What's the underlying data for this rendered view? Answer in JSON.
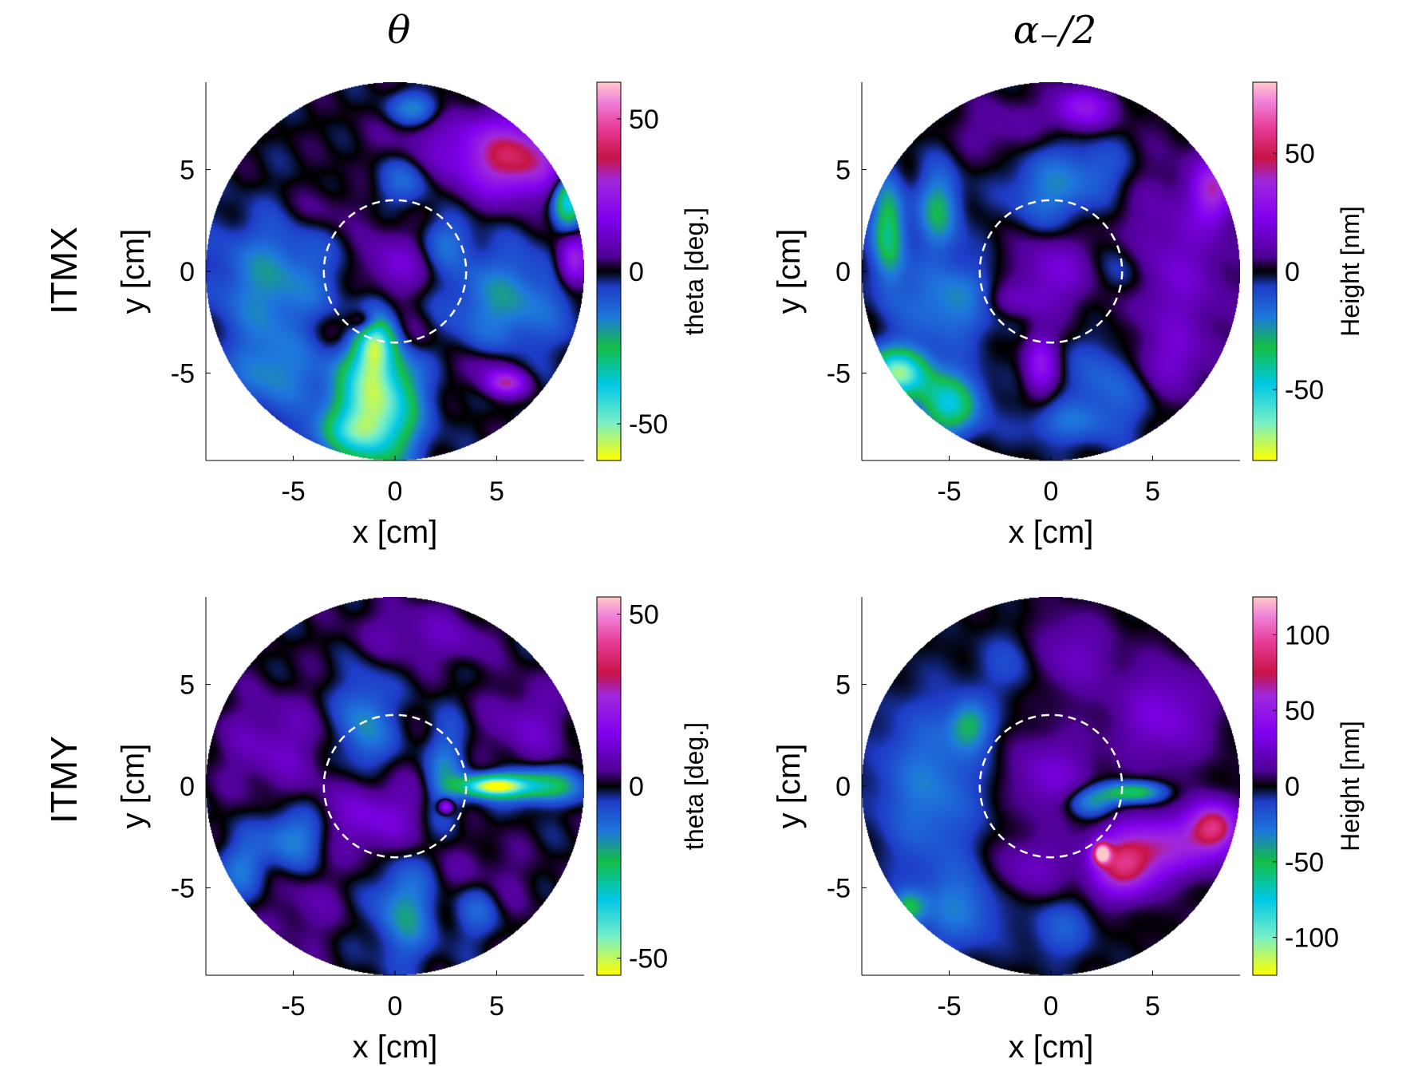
{
  "column_titles": [
    "θ",
    "α₋/2"
  ],
  "row_titles": [
    "ITMX",
    "ITMY"
  ],
  "chart_data": [
    {
      "type": "heatmap",
      "panel": "ITMX theta",
      "xlabel": "x [cm]",
      "ylabel": "y [cm]",
      "xlim": [
        -9.3,
        9.3
      ],
      "ylim": [
        -9.3,
        9.3
      ],
      "xticks": [
        -5,
        0,
        5
      ],
      "yticks": [
        -5,
        0,
        5
      ],
      "colorbar": {
        "label": "theta [deg.]",
        "range": [
          -62,
          62
        ],
        "ticks": [
          50,
          0,
          -50
        ]
      },
      "aperture_radius_cm": 9.3,
      "dashed_circle_radius_cm": 3.5,
      "blobs": [
        {
          "x": -1.0,
          "y": -6.5,
          "v": -55,
          "rx": 2.0,
          "ry": 3.0
        },
        {
          "x": -1.0,
          "y": -3.5,
          "v": -35,
          "rx": 0.9,
          "ry": 1.5
        },
        {
          "x": 6.0,
          "y": 5.5,
          "v": 35,
          "rx": 2.3,
          "ry": 1.8
        },
        {
          "x": 8.8,
          "y": 0.5,
          "v": 30,
          "rx": 0.8,
          "ry": 1.2
        },
        {
          "x": 8.5,
          "y": 3.5,
          "v": -40,
          "rx": 0.7,
          "ry": 1.2
        },
        {
          "x": 5.5,
          "y": -5.5,
          "v": 28,
          "rx": 1.0,
          "ry": 0.6
        },
        {
          "x": 0.0,
          "y": 0.3,
          "v": 14,
          "rx": 1.8,
          "ry": 1.8
        },
        {
          "x": -1.5,
          "y": -2.5,
          "v": 22,
          "rx": 0.7,
          "ry": 0.6
        },
        {
          "x": 3.0,
          "y": 6.0,
          "v": 12,
          "rx": 3.5,
          "ry": 2.0
        },
        {
          "x": -3.0,
          "y": -3.0,
          "v": 8,
          "rx": 1.5,
          "ry": 1.2
        },
        {
          "x": -3.5,
          "y": 3.0,
          "v": 6,
          "rx": 2.0,
          "ry": 1.2
        },
        {
          "x": 4.5,
          "y": -4.8,
          "v": 10,
          "rx": 1.5,
          "ry": 1.0
        },
        {
          "x": 1.0,
          "y": -3.2,
          "v": 10,
          "rx": 1.0,
          "ry": 1.2
        },
        {
          "x": -6.0,
          "y": -0.5,
          "v": -18,
          "rx": 3.0,
          "ry": 3.0
        },
        {
          "x": 5.5,
          "y": -1.5,
          "v": -18,
          "rx": 3.0,
          "ry": 2.5
        },
        {
          "x": 0.5,
          "y": 4.5,
          "v": -14,
          "rx": 1.5,
          "ry": 1.3
        },
        {
          "x": -6.0,
          "y": -5.0,
          "v": -16,
          "rx": 2.0,
          "ry": 2.0
        },
        {
          "x": 2.5,
          "y": 1.5,
          "v": -12,
          "rx": 1.3,
          "ry": 1.3
        },
        {
          "x": 1.0,
          "y": 8.0,
          "v": -18,
          "rx": 1.3,
          "ry": 0.8
        },
        {
          "x": -2.5,
          "y": -8.0,
          "v": -15,
          "rx": 2.0,
          "ry": 1.0
        }
      ]
    },
    {
      "type": "heatmap",
      "panel": "ITMX alpha/2",
      "xlabel": "x [cm]",
      "ylabel": "y [cm]",
      "xlim": [
        -9.3,
        9.3
      ],
      "ylim": [
        -9.3,
        9.3
      ],
      "xticks": [
        -5,
        0,
        5
      ],
      "yticks": [
        -5,
        0,
        5
      ],
      "colorbar": {
        "label": "Height [nm]",
        "range": [
          -80,
          80
        ],
        "ticks": [
          50,
          0,
          -50
        ]
      },
      "aperture_radius_cm": 9.3,
      "dashed_circle_radius_cm": 3.5,
      "blobs": [
        {
          "x": -7.5,
          "y": -5.0,
          "v": -65,
          "rx": 1.5,
          "ry": 1.2
        },
        {
          "x": -5.0,
          "y": -6.5,
          "v": -45,
          "rx": 1.5,
          "ry": 1.5
        },
        {
          "x": -8.0,
          "y": 2.0,
          "v": -40,
          "rx": 0.8,
          "ry": 2.5
        },
        {
          "x": -5.5,
          "y": 3.0,
          "v": -30,
          "rx": 1.0,
          "ry": 2.0
        },
        {
          "x": 8.0,
          "y": 4.0,
          "v": 35,
          "rx": 1.0,
          "ry": 1.5
        },
        {
          "x": 1.5,
          "y": 8.0,
          "v": 30,
          "rx": 1.5,
          "ry": 1.0
        },
        {
          "x": -0.5,
          "y": -4.5,
          "v": 28,
          "rx": 0.8,
          "ry": 1.5
        },
        {
          "x": 0.0,
          "y": 0.0,
          "v": 18,
          "rx": 2.0,
          "ry": 2.0
        },
        {
          "x": 6.0,
          "y": 0.0,
          "v": 16,
          "rx": 3.0,
          "ry": 5.0
        },
        {
          "x": 5.5,
          "y": -4.5,
          "v": 12,
          "rx": 2.0,
          "ry": 1.5
        },
        {
          "x": -2.5,
          "y": 7.0,
          "v": 10,
          "rx": 2.0,
          "ry": 1.5
        },
        {
          "x": -2.0,
          "y": -1.5,
          "v": 12,
          "rx": 1.5,
          "ry": 0.8
        },
        {
          "x": 0.0,
          "y": 4.0,
          "v": -20,
          "rx": 2.0,
          "ry": 2.0
        },
        {
          "x": -5.0,
          "y": -1.5,
          "v": -22,
          "rx": 2.5,
          "ry": 2.0
        },
        {
          "x": 3.0,
          "y": -5.5,
          "v": -18,
          "rx": 2.0,
          "ry": 2.5
        },
        {
          "x": 3.5,
          "y": 0.0,
          "v": -14,
          "rx": 1.2,
          "ry": 1.5
        },
        {
          "x": 2.5,
          "y": 5.0,
          "v": -12,
          "rx": 1.5,
          "ry": 1.5
        },
        {
          "x": 0.5,
          "y": -7.5,
          "v": -14,
          "rx": 2.0,
          "ry": 1.0
        }
      ]
    },
    {
      "type": "heatmap",
      "panel": "ITMY theta",
      "xlabel": "x [cm]",
      "ylabel": "y [cm]",
      "xlim": [
        -9.3,
        9.3
      ],
      "ylim": [
        -9.3,
        9.3
      ],
      "xticks": [
        -5,
        0,
        5
      ],
      "yticks": [
        -5,
        0,
        5
      ],
      "colorbar": {
        "label": "theta [deg.]",
        "range": [
          -55,
          55
        ],
        "ticks": [
          50,
          0,
          -50
        ]
      },
      "aperture_radius_cm": 9.3,
      "dashed_circle_radius_cm": 3.5,
      "blobs": [
        {
          "x": 4.8,
          "y": 0.0,
          "v": -50,
          "rx": 1.5,
          "ry": 0.5
        },
        {
          "x": 7.0,
          "y": 0.0,
          "v": -28,
          "rx": 2.0,
          "ry": 0.8
        },
        {
          "x": 2.5,
          "y": -1.0,
          "v": 28,
          "rx": 0.35,
          "ry": 0.35
        },
        {
          "x": -1.0,
          "y": -1.5,
          "v": 14,
          "rx": 2.5,
          "ry": 2.0
        },
        {
          "x": -6.0,
          "y": 2.0,
          "v": 10,
          "rx": 2.5,
          "ry": 2.5
        },
        {
          "x": 6.5,
          "y": 3.0,
          "v": 10,
          "rx": 2.0,
          "ry": 2.0
        },
        {
          "x": 1.0,
          "y": 7.5,
          "v": 8,
          "rx": 3.0,
          "ry": 1.5
        },
        {
          "x": 4.0,
          "y": -5.0,
          "v": 8,
          "rx": 2.5,
          "ry": 2.0
        },
        {
          "x": -4.5,
          "y": -6.0,
          "v": 6,
          "rx": 2.0,
          "ry": 2.0
        },
        {
          "x": -1.5,
          "y": 3.0,
          "v": -16,
          "rx": 1.3,
          "ry": 2.5
        },
        {
          "x": 2.5,
          "y": 0.5,
          "v": -14,
          "rx": 1.0,
          "ry": 2.5
        },
        {
          "x": -5.0,
          "y": -2.5,
          "v": -16,
          "rx": 1.5,
          "ry": 1.5
        },
        {
          "x": 0.5,
          "y": -6.0,
          "v": -18,
          "rx": 1.5,
          "ry": 2.5
        },
        {
          "x": 4.0,
          "y": -6.0,
          "v": -14,
          "rx": 1.3,
          "ry": 1.5
        },
        {
          "x": -7.5,
          "y": -4.0,
          "v": -12,
          "rx": 1.2,
          "ry": 1.5
        },
        {
          "x": 3.5,
          "y": 7.0,
          "v": 4,
          "rx": 1.3,
          "ry": 1.0
        }
      ]
    },
    {
      "type": "heatmap",
      "panel": "ITMY alpha/2",
      "xlabel": "x [cm]",
      "ylabel": "y [cm]",
      "xlim": [
        -9.3,
        9.3
      ],
      "ylim": [
        -9.3,
        9.3
      ],
      "xticks": [
        -5,
        0,
        5
      ],
      "yticks": [
        -5,
        0,
        5
      ],
      "colorbar": {
        "label": "Height [nm]",
        "range": [
          -125,
          125
        ],
        "ticks": [
          100,
          50,
          0,
          -50,
          -100
        ]
      },
      "aperture_radius_cm": 9.3,
      "dashed_circle_radius_cm": 3.5,
      "blobs": [
        {
          "x": 2.5,
          "y": -3.3,
          "v": 110,
          "rx": 0.4,
          "ry": 0.5
        },
        {
          "x": 3.5,
          "y": -4.0,
          "v": 70,
          "rx": 1.5,
          "ry": 1.5
        },
        {
          "x": 8.0,
          "y": -2.0,
          "v": 80,
          "rx": 1.2,
          "ry": 1.2
        },
        {
          "x": 5.5,
          "y": -3.0,
          "v": 55,
          "rx": 2.5,
          "ry": 1.5
        },
        {
          "x": 4.0,
          "y": -0.3,
          "v": -60,
          "rx": 1.5,
          "ry": 0.5
        },
        {
          "x": 2.0,
          "y": -0.8,
          "v": -40,
          "rx": 1.2,
          "ry": 0.7
        },
        {
          "x": 0.0,
          "y": 0.5,
          "v": 28,
          "rx": 2.0,
          "ry": 2.0
        },
        {
          "x": 5.5,
          "y": 3.5,
          "v": 30,
          "rx": 2.5,
          "ry": 2.5
        },
        {
          "x": -1.0,
          "y": -4.0,
          "v": 22,
          "rx": 2.0,
          "ry": 1.5
        },
        {
          "x": 1.0,
          "y": 6.5,
          "v": 22,
          "rx": 2.0,
          "ry": 2.0
        },
        {
          "x": -6.0,
          "y": 0.0,
          "v": -30,
          "rx": 2.5,
          "ry": 4.0
        },
        {
          "x": -4.0,
          "y": 3.0,
          "v": -40,
          "rx": 1.0,
          "ry": 1.2
        },
        {
          "x": -4.5,
          "y": -6.0,
          "v": -28,
          "rx": 2.0,
          "ry": 2.0
        },
        {
          "x": 0.5,
          "y": -7.0,
          "v": -20,
          "rx": 1.5,
          "ry": 1.5
        },
        {
          "x": -7.0,
          "y": -6.0,
          "v": -45,
          "rx": 0.8,
          "ry": 0.8
        },
        {
          "x": -2.0,
          "y": 6.0,
          "v": -15,
          "rx": 1.5,
          "ry": 1.5
        },
        {
          "x": 7.5,
          "y": -7.0,
          "v": 12,
          "rx": 1.0,
          "ry": 1.0
        }
      ]
    }
  ]
}
